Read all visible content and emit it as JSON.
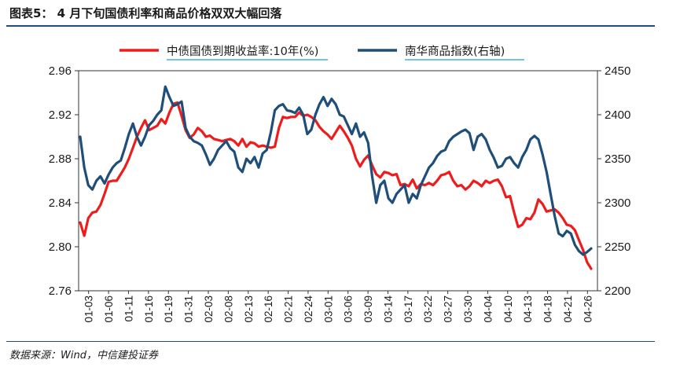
{
  "title": "图表5：  4 月下旬国债利率和商品价格双双大幅回落",
  "source": "数据来源：Wind，中信建投证券",
  "colors": {
    "red": "#ee1c1c",
    "blue": "#1f4e79",
    "axis": "#333333"
  },
  "chart_data": {
    "type": "line",
    "x_ticks": [
      "01-03",
      "01-06",
      "01-11",
      "01-16",
      "01-19",
      "01-31",
      "02-03",
      "02-08",
      "02-13",
      "02-16",
      "02-21",
      "02-24",
      "03-01",
      "03-06",
      "03-09",
      "03-14",
      "03-17",
      "03-22",
      "03-27",
      "03-30",
      "04-04",
      "04-10",
      "04-13",
      "04-18",
      "04-21",
      "04-26"
    ],
    "y_left": {
      "ticks": [
        "2.96",
        "2.92",
        "2.88",
        "2.84",
        "2.80",
        "2.76"
      ],
      "range": [
        2.76,
        2.96
      ]
    },
    "y_right": {
      "ticks": [
        "2450",
        "2400",
        "2350",
        "2300",
        "2250",
        "2200"
      ],
      "range": [
        2200,
        2450
      ]
    },
    "series": [
      {
        "name": "中债国债到期收益率:10年(%)",
        "axis": "left",
        "color": "#ee1c1c",
        "values": [
          2.822,
          2.81,
          2.826,
          2.831,
          2.832,
          2.838,
          2.848,
          2.859,
          2.86,
          2.86,
          2.866,
          2.872,
          2.88,
          2.89,
          2.9,
          2.908,
          2.915,
          2.906,
          2.908,
          2.91,
          2.916,
          2.912,
          2.922,
          2.93,
          2.931,
          2.919,
          2.906,
          2.899,
          2.902,
          2.908,
          2.905,
          2.9,
          2.901,
          2.898,
          2.897,
          2.896,
          2.897,
          2.898,
          2.896,
          2.892,
          2.898,
          2.891,
          2.895,
          2.894,
          2.891,
          2.892,
          2.891,
          2.89,
          2.891,
          2.908,
          2.918,
          2.917,
          2.918,
          2.918,
          2.922,
          2.919,
          2.92,
          2.918,
          2.915,
          2.909,
          2.905,
          2.902,
          2.898,
          2.904,
          2.91,
          2.905,
          2.899,
          2.892,
          2.88,
          2.873,
          2.879,
          2.883,
          2.874,
          2.866,
          2.863,
          2.868,
          2.867,
          2.865,
          2.866,
          2.856,
          2.857,
          2.855,
          2.861,
          2.853,
          2.857,
          2.856,
          2.858,
          2.856,
          2.86,
          2.865,
          2.866,
          2.868,
          2.86,
          2.855,
          2.856,
          2.852,
          2.855,
          2.86,
          2.858,
          2.855,
          2.86,
          2.858,
          2.86,
          2.861,
          2.855,
          2.845,
          2.846,
          2.831,
          2.818,
          2.82,
          2.826,
          2.825,
          2.831,
          2.843,
          2.839,
          2.832,
          2.833,
          2.834,
          2.831,
          2.826,
          2.82,
          2.819,
          2.815,
          2.806,
          2.797,
          2.786,
          2.78
        ]
      },
      {
        "name": "南华商品指数(右轴)",
        "axis": "right",
        "color": "#1f4e79",
        "values": [
          2375,
          2340,
          2320,
          2315,
          2325,
          2330,
          2322,
          2332,
          2340,
          2345,
          2348,
          2362,
          2378,
          2390,
          2375,
          2365,
          2375,
          2388,
          2393,
          2400,
          2405,
          2432,
          2420,
          2410,
          2412,
          2415,
          2385,
          2375,
          2370,
          2368,
          2365,
          2355,
          2343,
          2350,
          2360,
          2365,
          2370,
          2362,
          2358,
          2340,
          2335,
          2350,
          2345,
          2352,
          2340,
          2356,
          2360,
          2380,
          2405,
          2410,
          2412,
          2405,
          2404,
          2402,
          2408,
          2400,
          2378,
          2383,
          2400,
          2412,
          2420,
          2410,
          2418,
          2412,
          2400,
          2398,
          2388,
          2378,
          2390,
          2375,
          2380,
          2368,
          2330,
          2300,
          2320,
          2325,
          2305,
          2300,
          2310,
          2315,
          2320,
          2300,
          2310,
          2305,
          2320,
          2330,
          2340,
          2345,
          2353,
          2358,
          2360,
          2370,
          2375,
          2378,
          2381,
          2383,
          2379,
          2360,
          2375,
          2378,
          2372,
          2360,
          2351,
          2340,
          2342,
          2350,
          2352,
          2345,
          2340,
          2352,
          2360,
          2372,
          2376,
          2372,
          2355,
          2335,
          2310,
          2285,
          2265,
          2262,
          2268,
          2265,
          2252,
          2245,
          2241,
          2244,
          2248
        ]
      }
    ]
  }
}
